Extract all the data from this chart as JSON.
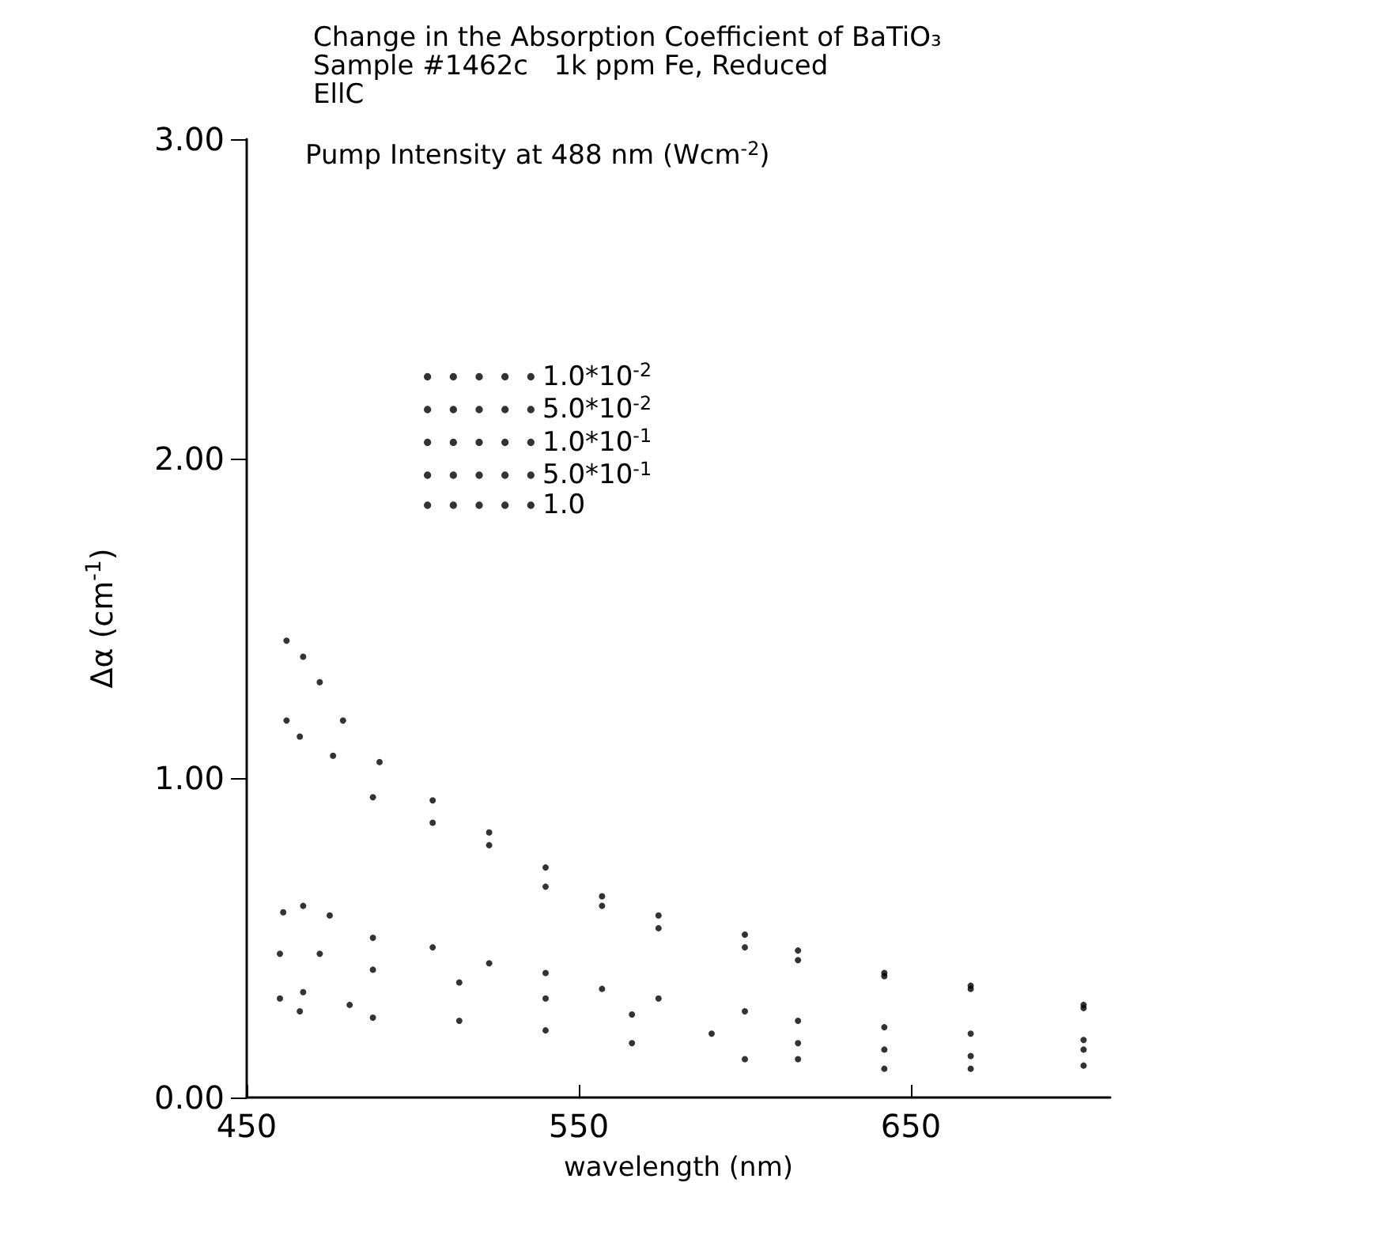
{
  "chart_data": {
    "type": "scatter",
    "title": "Change in the Absorption Coefficient of BaTiO₃\nSample #1462c   1k ppm Fe, Reduced\nEllC",
    "legend_title": "Pump Intensity at 488 nm (Wcm$^{-2}$)",
    "xlabel": "wavelength (nm)",
    "ylabel": "Δα (cm$^{-1}$)",
    "xlim": [
      450,
      710
    ],
    "ylim": [
      0,
      3
    ],
    "xticks": [
      450,
      550,
      650
    ],
    "yticks": [
      {
        "value": 0,
        "label": "0.00"
      },
      {
        "value": 1,
        "label": "1.00"
      },
      {
        "value": 2,
        "label": "2.00"
      },
      {
        "value": 3,
        "label": "3.00"
      }
    ],
    "marker": "circle",
    "legend": "top left",
    "grid": false,
    "series": [
      {
        "name": "1.0*10$^{-2}$",
        "color": "#000000",
        "x": [
          460,
          466,
          467,
          481,
          488,
          514,
          540,
          566,
          600,
          616,
          642,
          668,
          702
        ],
        "values": [
          0.31,
          0.27,
          0.33,
          0.29,
          0.25,
          0.24,
          0.21,
          0.17,
          0.12,
          0.12,
          0.09,
          0.09,
          0.1
        ]
      },
      {
        "name": "5.0*10$^{-2}$",
        "color": "#000000",
        "x": [
          460,
          472,
          488,
          514,
          540,
          566,
          590,
          616,
          642,
          668,
          702
        ],
        "values": [
          0.45,
          0.45,
          0.4,
          0.36,
          0.31,
          0.26,
          0.2,
          0.17,
          0.15,
          0.13,
          0.15
        ]
      },
      {
        "name": "1.0*10$^{-1}$",
        "color": "#000000",
        "x": [
          461,
          467,
          475,
          488,
          506,
          523,
          540,
          557,
          574,
          600,
          616,
          642,
          668,
          702
        ],
        "values": [
          0.58,
          0.6,
          0.57,
          0.5,
          0.47,
          0.42,
          0.39,
          0.34,
          0.31,
          0.27,
          0.24,
          0.22,
          0.2,
          0.18
        ]
      },
      {
        "name": "5.0*10$^{-1}$",
        "color": "#000000",
        "x": [
          462,
          466,
          476,
          488,
          506,
          523,
          540,
          557,
          574,
          600,
          616,
          642,
          668,
          702
        ],
        "values": [
          1.18,
          1.13,
          1.07,
          0.94,
          0.86,
          0.79,
          0.66,
          0.6,
          0.53,
          0.47,
          0.43,
          0.38,
          0.34,
          0.28
        ]
      },
      {
        "name": "1.0",
        "color": "#000000",
        "x": [
          462,
          467,
          472,
          479,
          490,
          506,
          523,
          540,
          557,
          574,
          600,
          616,
          642,
          668,
          702
        ],
        "values": [
          1.43,
          1.38,
          1.3,
          1.18,
          1.05,
          0.93,
          0.83,
          0.72,
          0.63,
          0.57,
          0.51,
          0.46,
          0.39,
          0.35,
          0.29
        ]
      }
    ]
  }
}
